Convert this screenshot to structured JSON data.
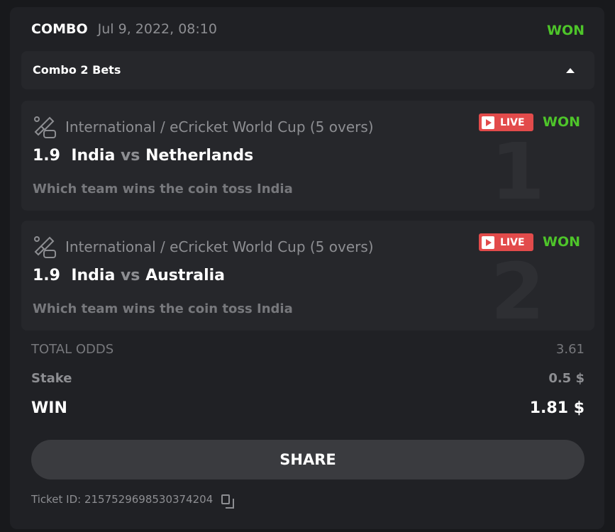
{
  "header": {
    "type": "COMBO",
    "date": "Jul 9, 2022, 08:10",
    "status": "WON"
  },
  "accordion": {
    "title": "Combo 2 Bets"
  },
  "bets": [
    {
      "index": "1",
      "category": "International / eCricket World Cup (5 overs)",
      "live": "LIVE",
      "status": "WON",
      "odds": "1.9",
      "team1": "India",
      "vs": "vs",
      "team2": "Netherlands",
      "selection": "Which team wins the coin toss India"
    },
    {
      "index": "2",
      "category": "International / eCricket World Cup (5 overs)",
      "live": "LIVE",
      "status": "WON",
      "odds": "1.9",
      "team1": "India",
      "vs": "vs",
      "team2": "Australia",
      "selection": "Which team wins the coin toss India"
    }
  ],
  "totals": {
    "odds_label": "TOTAL ODDS",
    "odds": "3.61",
    "stake_label": "Stake",
    "stake": "0.5 $",
    "win_label": "WIN",
    "win": "1.81 $"
  },
  "share_label": "SHARE",
  "ticket": "Ticket ID: 2157529698530374204",
  "colors": {
    "won": "#4ec52a",
    "live": "#e24b4b"
  }
}
